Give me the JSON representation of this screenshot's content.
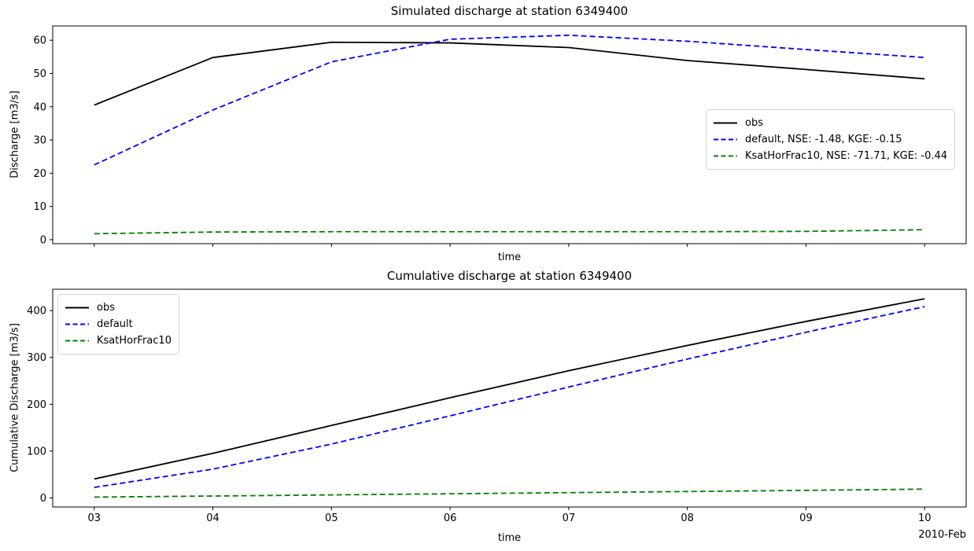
{
  "figure": {
    "background": "#ffffff",
    "station_id": "6349400"
  },
  "chart_data": [
    {
      "type": "line",
      "title": "Simulated discharge at station 6349400",
      "xlabel": "time",
      "ylabel": "Discharge [m3/s]",
      "categories": [
        "03",
        "04",
        "05",
        "06",
        "07",
        "08",
        "09",
        "10"
      ],
      "x_tick_labels_visible": false,
      "x_period": "2010-Feb",
      "yticks": [
        0,
        10,
        20,
        30,
        40,
        50,
        60
      ],
      "ylim": [
        -1.2,
        64.3
      ],
      "xlim_days": [
        2.65,
        10.35
      ],
      "grid": false,
      "legend_position": "center-right",
      "series": [
        {
          "name": "obs",
          "label": "obs",
          "color": "#000000",
          "style": "solid",
          "values": [
            40.5,
            54.8,
            59.4,
            59.2,
            57.8,
            53.9,
            51.2,
            48.4
          ]
        },
        {
          "name": "default",
          "label": "default, NSE: -1.48, KGE: -0.15",
          "color": "#0000ff",
          "style": "dashed",
          "values": [
            22.5,
            39.0,
            53.5,
            60.3,
            61.5,
            59.7,
            57.2,
            54.8
          ]
        },
        {
          "name": "KsatHorFrac10",
          "label": "KsatHorFrac10, NSE: -71.71, KGE: -0.44",
          "color": "#008000",
          "style": "dashed",
          "values": [
            1.8,
            2.3,
            2.4,
            2.4,
            2.4,
            2.4,
            2.5,
            3.0
          ]
        }
      ]
    },
    {
      "type": "line",
      "title": "Cumulative discharge at station 6349400",
      "xlabel": "time",
      "ylabel": "Cumulative Discharge [m3/s]",
      "categories": [
        "03",
        "04",
        "05",
        "06",
        "07",
        "08",
        "09",
        "10"
      ],
      "x_tick_labels_visible": true,
      "x_offset_label": "2010-Feb",
      "yticks": [
        0,
        100,
        200,
        300,
        400
      ],
      "ylim": [
        -19.3,
        445.5
      ],
      "xlim_days": [
        2.65,
        10.35
      ],
      "grid": false,
      "legend_position": "upper-left",
      "series": [
        {
          "name": "obs",
          "label": "obs",
          "color": "#000000",
          "style": "solid",
          "values": [
            40.5,
            95.3,
            154.7,
            213.9,
            271.7,
            325.6,
            376.8,
            425.2
          ]
        },
        {
          "name": "default",
          "label": "default",
          "color": "#0000ff",
          "style": "dashed",
          "values": [
            22.5,
            61.5,
            115.0,
            175.3,
            236.8,
            296.5,
            353.7,
            408.5
          ]
        },
        {
          "name": "KsatHorFrac10",
          "label": "KsatHorFrac10",
          "color": "#008000",
          "style": "dashed",
          "values": [
            1.8,
            4.1,
            6.5,
            8.9,
            11.3,
            13.7,
            16.2,
            18.8
          ]
        }
      ]
    }
  ]
}
